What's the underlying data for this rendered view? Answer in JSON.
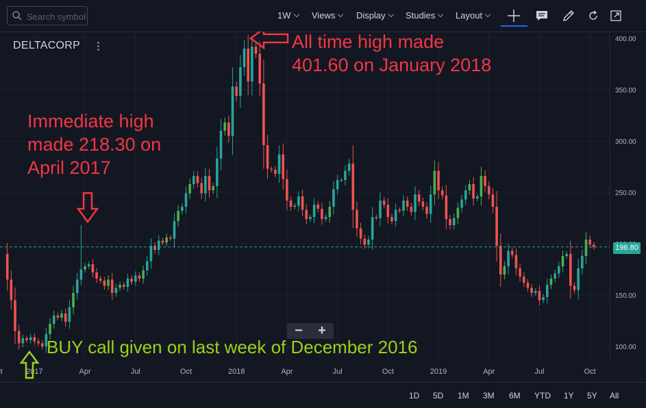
{
  "toolbar": {
    "search_placeholder": "Search symbol",
    "interval": "1W",
    "views": "Views",
    "display": "Display",
    "studies": "Studies",
    "layout": "Layout",
    "icons": [
      "search-icon",
      "crosshair-icon",
      "message-icon",
      "pencil-icon",
      "undo-icon",
      "fullscreen-icon"
    ]
  },
  "symbol": "DELTACORP",
  "annotations": {
    "ath": [
      "All time high made",
      "401.60 on January 2018"
    ],
    "immediate": [
      "Immediate high",
      "made 218.30 on",
      "April 2017"
    ],
    "buy": "BUY call given on last week of December 2016"
  },
  "current_price_label": "196.80",
  "bottom_ranges": [
    "1D",
    "5D",
    "1M",
    "3M",
    "6M",
    "YTD",
    "1Y",
    "5Y",
    "All"
  ],
  "colors": {
    "up": "#26a69a",
    "up_bright": "#4caf50",
    "down": "#ef5350",
    "annotation_red": "#f23645",
    "annotation_green": "#9bd21a",
    "background": "#131722"
  },
  "chart_data": {
    "type": "candlestick",
    "xlabel": "",
    "ylabel": "",
    "ylim": [
      85,
      410
    ],
    "yticks": [
      100,
      150,
      200,
      250,
      300,
      350,
      400
    ],
    "xticks": [
      {
        "label": "ct",
        "week": -1
      },
      {
        "label": "2017",
        "week": 8
      },
      {
        "label": "Apr",
        "week": 21
      },
      {
        "label": "Jul",
        "week": 34
      },
      {
        "label": "Oct",
        "week": 47
      },
      {
        "label": "2018",
        "week": 60
      },
      {
        "label": "Apr",
        "week": 73
      },
      {
        "label": "Jul",
        "week": 86
      },
      {
        "label": "Oct",
        "week": 99
      },
      {
        "label": "2019",
        "week": 112
      },
      {
        "label": "Apr",
        "week": 125
      },
      {
        "label": "Jul",
        "week": 138
      },
      {
        "label": "Oct",
        "week": 151
      }
    ],
    "current_price": 196.8,
    "key_levels": {
      "all_time_high": 401.6,
      "immediate_high": 218.3
    },
    "weekly_close": [
      190,
      165,
      145,
      115,
      103,
      108,
      106,
      109,
      105,
      103,
      100,
      112,
      122,
      130,
      128,
      132,
      124,
      138,
      152,
      165,
      175,
      178,
      180,
      172,
      166,
      164,
      159,
      165,
      152,
      157,
      160,
      158,
      166,
      163,
      169,
      166,
      174,
      183,
      198,
      194,
      203,
      201,
      206,
      205,
      222,
      232,
      236,
      249,
      258,
      266,
      259,
      249,
      266,
      252,
      256,
      283,
      310,
      318,
      305,
      353,
      344,
      372,
      390,
      358,
      392,
      385,
      356,
      296,
      273,
      272,
      268,
      287,
      263,
      242,
      236,
      237,
      246,
      233,
      224,
      226,
      238,
      234,
      224,
      226,
      236,
      253,
      262,
      262,
      271,
      278,
      233,
      215,
      205,
      199,
      204,
      226,
      225,
      242,
      238,
      226,
      222,
      233,
      232,
      242,
      236,
      231,
      248,
      241,
      236,
      229,
      248,
      271,
      252,
      247,
      224,
      218,
      225,
      235,
      243,
      252,
      258,
      244,
      246,
      266,
      256,
      248,
      236,
      198,
      170,
      178,
      193,
      189,
      176,
      168,
      162,
      157,
      152,
      154,
      145,
      148,
      160,
      166,
      171,
      178,
      188,
      190,
      159,
      155,
      176,
      188,
      204,
      199,
      196.8
    ]
  }
}
